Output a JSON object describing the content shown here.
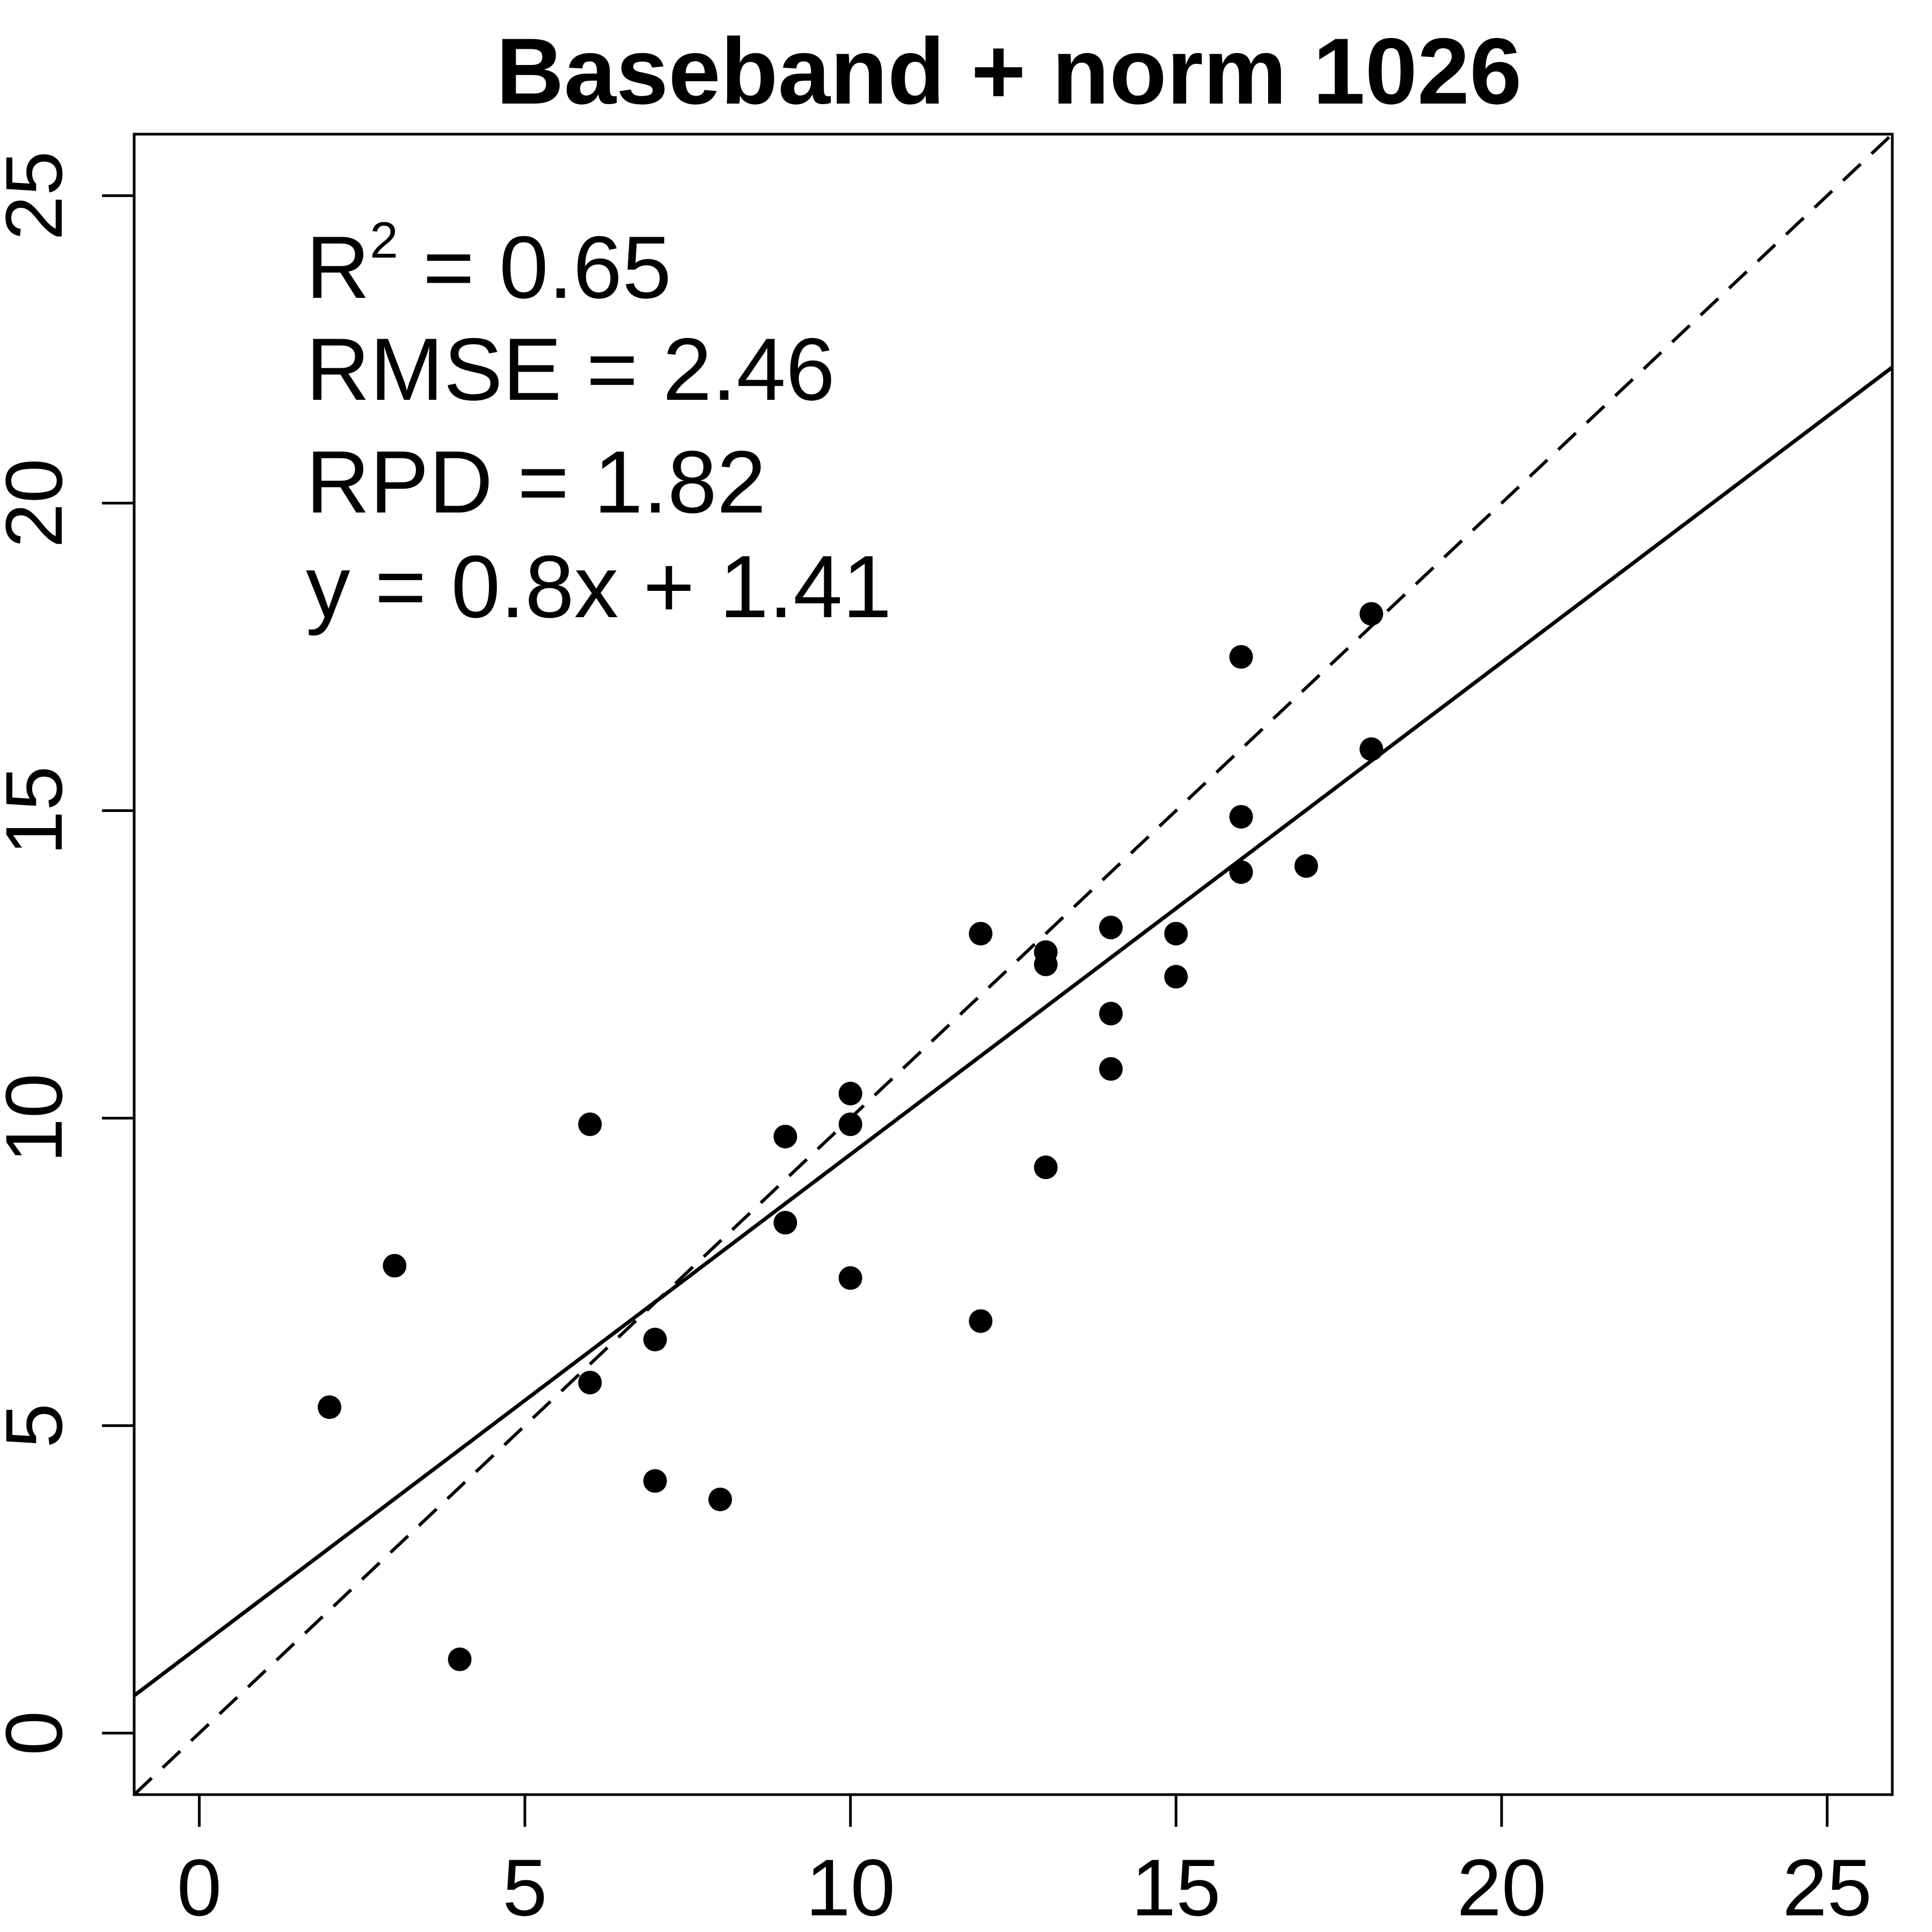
{
  "chart_data": {
    "type": "scatter",
    "title": "Baseband + norm 1026",
    "xlabel": "",
    "ylabel": "",
    "xlim": [
      -1,
      26
    ],
    "ylim": [
      -1,
      26
    ],
    "xticks": [
      0,
      5,
      10,
      15,
      20,
      25
    ],
    "yticks": [
      0,
      5,
      10,
      15,
      20,
      25
    ],
    "grid": false,
    "points": [
      {
        "x": 2,
        "y": 5.3
      },
      {
        "x": 3,
        "y": 7.6
      },
      {
        "x": 4,
        "y": 1.2
      },
      {
        "x": 6,
        "y": 9.9
      },
      {
        "x": 6,
        "y": 5.7
      },
      {
        "x": 7,
        "y": 6.4
      },
      {
        "x": 7,
        "y": 4.1
      },
      {
        "x": 8,
        "y": 3.8
      },
      {
        "x": 9,
        "y": 9.7
      },
      {
        "x": 9,
        "y": 8.3
      },
      {
        "x": 10,
        "y": 10.4
      },
      {
        "x": 10,
        "y": 9.9
      },
      {
        "x": 10,
        "y": 7.4
      },
      {
        "x": 12,
        "y": 13.0
      },
      {
        "x": 12,
        "y": 6.7
      },
      {
        "x": 13,
        "y": 12.7
      },
      {
        "x": 13,
        "y": 12.5
      },
      {
        "x": 13,
        "y": 9.2
      },
      {
        "x": 14,
        "y": 13.1
      },
      {
        "x": 14,
        "y": 11.7
      },
      {
        "x": 14,
        "y": 10.8
      },
      {
        "x": 15,
        "y": 13.0
      },
      {
        "x": 15,
        "y": 12.3
      },
      {
        "x": 16,
        "y": 17.5
      },
      {
        "x": 16,
        "y": 14.9
      },
      {
        "x": 16,
        "y": 14.0
      },
      {
        "x": 17,
        "y": 14.1
      },
      {
        "x": 18,
        "y": 18.2
      },
      {
        "x": 18,
        "y": 16.0
      }
    ],
    "fit_line": {
      "slope": 0.8,
      "intercept": 1.41,
      "style": "solid"
    },
    "reference_line": {
      "slope": 1,
      "intercept": 0,
      "style": "dashed"
    },
    "annotations": {
      "r2_label": "R",
      "r2_sup": "2",
      "r2_value": " = 0.65",
      "rmse": "RMSE = 2.46",
      "rpd": "RPD = 1.82",
      "equation": "y = 0.8x + 1.41"
    }
  }
}
